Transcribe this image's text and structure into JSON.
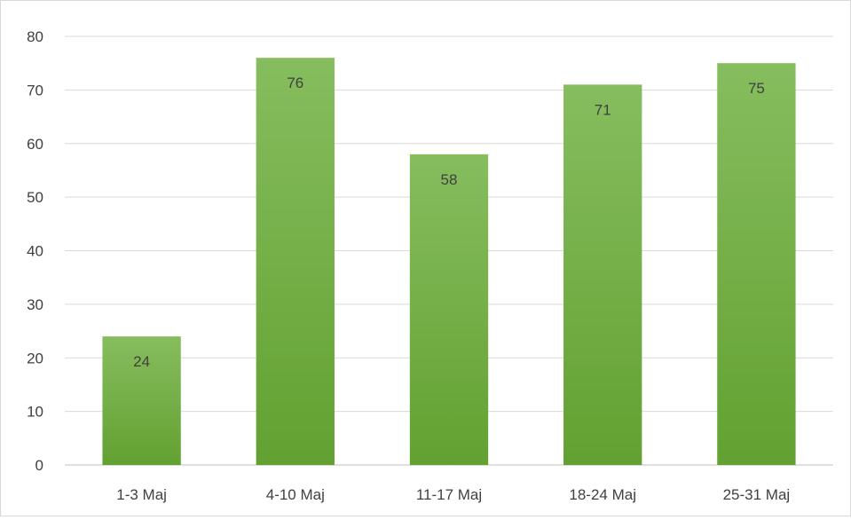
{
  "chart_data": {
    "type": "bar",
    "categories": [
      "1-3 Maj",
      "4-10 Maj",
      "11-17 Maj",
      "18-24 Maj",
      "25-31 Maj"
    ],
    "values": [
      24,
      76,
      58,
      71,
      75
    ],
    "data_labels": [
      "24",
      "76",
      "58",
      "71",
      "75"
    ],
    "title": "",
    "xlabel": "",
    "ylabel": "",
    "ylim": [
      0,
      80
    ],
    "yticks": [
      0,
      10,
      20,
      30,
      40,
      50,
      60,
      70,
      80
    ],
    "ytick_labels": [
      "0",
      "10",
      "20",
      "30",
      "40",
      "50",
      "60",
      "70",
      "80"
    ],
    "grid": true,
    "legend": "none",
    "colors": {
      "bar_top": "#86bd5e",
      "bar_bottom": "#62a131",
      "gridline": "#d9d9d9",
      "label_text": "#404040"
    }
  }
}
